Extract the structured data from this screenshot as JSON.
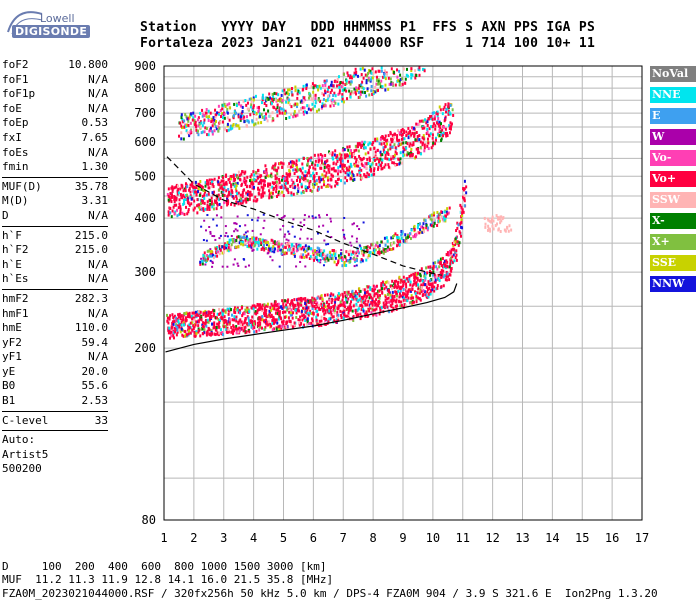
{
  "logo": {
    "top": "Lowell",
    "main": "DIGISONDE"
  },
  "header": {
    "line1": "Station   YYYY DAY   DDD HHMMSS P1  FFS S AXN PPS IGA PS",
    "line2": "Fortaleza 2023 Jan21 021 044000 RSF     1 714 100 10+ 11"
  },
  "params": [
    {
      "k": "foF2",
      "v": "10.800"
    },
    {
      "k": "foF1",
      "v": "N/A"
    },
    {
      "k": "foF1p",
      "v": "N/A"
    },
    {
      "k": "foE",
      "v": "N/A"
    },
    {
      "k": "foEp",
      "v": "0.53"
    },
    {
      "k": "fxI",
      "v": "7.65"
    },
    {
      "k": "foEs",
      "v": "N/A"
    },
    {
      "k": "fmin",
      "v": "1.30"
    },
    {
      "sep": true
    },
    {
      "k": "MUF(D)",
      "v": "35.78"
    },
    {
      "k": "M(D)",
      "v": "3.31"
    },
    {
      "k": "D",
      "v": "N/A"
    },
    {
      "sep": true
    },
    {
      "k": "h`F",
      "v": "215.0"
    },
    {
      "k": "h`F2",
      "v": "215.0"
    },
    {
      "k": "h`E",
      "v": "N/A"
    },
    {
      "k": "h`Es",
      "v": "N/A"
    },
    {
      "sep": true
    },
    {
      "k": "hmF2",
      "v": "282.3"
    },
    {
      "k": "hmF1",
      "v": "N/A"
    },
    {
      "k": "hmE",
      "v": "110.0"
    },
    {
      "k": "yF2",
      "v": "59.4"
    },
    {
      "k": "yF1",
      "v": "N/A"
    },
    {
      "k": "yE",
      "v": "20.0"
    },
    {
      "k": "B0",
      "v": "55.6"
    },
    {
      "k": "B1",
      "v": "2.53"
    },
    {
      "sep": true
    },
    {
      "k": "C-level",
      "v": "33"
    },
    {
      "sep": true
    },
    {
      "k": "Auto:",
      "v": ""
    },
    {
      "k": "Artist5",
      "v": ""
    },
    {
      "k": "500200",
      "v": ""
    }
  ],
  "legend": [
    {
      "label": "NoVal",
      "color": "#7f7f7f"
    },
    {
      "label": "NNE",
      "color": "#00e5ee"
    },
    {
      "label": "E",
      "color": "#3ea0f0"
    },
    {
      "label": "W",
      "color": "#aa00aa"
    },
    {
      "label": "Vo-",
      "color": "#ff3fb4"
    },
    {
      "label": "Vo+",
      "color": "#ff0040"
    },
    {
      "label": "SSW",
      "color": "#ffb4b4"
    },
    {
      "label": "X-",
      "color": "#008000"
    },
    {
      "label": "X+",
      "color": "#80c040"
    },
    {
      "label": "SSE",
      "color": "#c8d200"
    },
    {
      "label": "NNW",
      "color": "#1414dc"
    }
  ],
  "bottom": {
    "line1": "D     100  200  400  600  800 1000 1500 3000 [km]",
    "line2": "MUF  11.2 11.3 11.9 12.8 14.1 16.0 21.5 35.8 [MHz]",
    "line3": "FZA0M_2023021044000.RSF / 320fx256h 50 kHz 5.0 km / DPS-4 FZA0M 904 / 3.9 S 321.6 E  Ion2Png 1.3.20"
  },
  "chart_data": {
    "type": "scatter",
    "title": "",
    "xlabel": "",
    "ylabel": "",
    "xlim": [
      1,
      17
    ],
    "ylim": [
      80,
      900
    ],
    "grid": true,
    "x_ticks": [
      1,
      2,
      3,
      4,
      5,
      6,
      7,
      8,
      9,
      10,
      11,
      12,
      13,
      14,
      15,
      16,
      17
    ],
    "y_ticks": [
      80,
      200,
      300,
      400,
      500,
      600,
      700,
      800,
      900
    ],
    "y_scale_note": "log",
    "traces": {
      "first_hop": [
        [
          1.1,
          222
        ],
        [
          2,
          225
        ],
        [
          3,
          228
        ],
        [
          4,
          232
        ],
        [
          5,
          236
        ],
        [
          6,
          240
        ],
        [
          7,
          246
        ],
        [
          8,
          254
        ],
        [
          9,
          266
        ],
        [
          9.5,
          275
        ],
        [
          10,
          286
        ],
        [
          10.4,
          300
        ],
        [
          10.7,
          330
        ],
        [
          10.85,
          370
        ],
        [
          10.95,
          420
        ],
        [
          11.05,
          460
        ]
      ],
      "second_hop": [
        [
          1.1,
          430
        ],
        [
          2,
          440
        ],
        [
          3,
          455
        ],
        [
          4,
          470
        ],
        [
          5,
          485
        ],
        [
          6,
          500
        ],
        [
          7,
          520
        ],
        [
          8,
          545
        ],
        [
          9,
          580
        ],
        [
          9.5,
          600
        ],
        [
          10,
          630
        ],
        [
          10.4,
          665
        ],
        [
          10.6,
          690
        ]
      ],
      "third_hop": [
        [
          1.5,
          640
        ],
        [
          2,
          650
        ],
        [
          3,
          675
        ],
        [
          4,
          700
        ],
        [
          5,
          725
        ],
        [
          6,
          750
        ],
        [
          7,
          790
        ],
        [
          8,
          830
        ],
        [
          9,
          870
        ],
        [
          9.7,
          905
        ]
      ],
      "spread_f_low": [
        [
          2.2,
          320
        ],
        [
          3.5,
          355
        ],
        [
          5,
          340
        ],
        [
          6,
          330
        ],
        [
          7,
          320
        ],
        [
          8,
          335
        ],
        [
          9,
          360
        ],
        [
          10,
          395
        ],
        [
          10.5,
          410
        ]
      ],
      "side_cluster": [
        [
          11.7,
          385
        ],
        [
          12,
          390
        ],
        [
          12.3,
          395
        ],
        [
          12.6,
          400
        ]
      ]
    },
    "profile_curve": [
      [
        1.05,
        196
      ],
      [
        2,
        204
      ],
      [
        3,
        210
      ],
      [
        4,
        215
      ],
      [
        5,
        220
      ],
      [
        6,
        225
      ],
      [
        7,
        232
      ],
      [
        8,
        240
      ],
      [
        9,
        248
      ],
      [
        9.8,
        255
      ],
      [
        10.4,
        262
      ],
      [
        10.7,
        270
      ],
      [
        10.8,
        282.3
      ]
    ],
    "dashed_curve": [
      [
        1.1,
        555
      ],
      [
        2,
        480
      ],
      [
        3,
        440
      ],
      [
        4,
        420
      ],
      [
        5,
        395
      ],
      [
        6,
        375
      ],
      [
        7,
        350
      ],
      [
        8,
        330
      ],
      [
        9,
        310
      ],
      [
        9.8,
        300
      ],
      [
        10.3,
        295
      ]
    ]
  }
}
